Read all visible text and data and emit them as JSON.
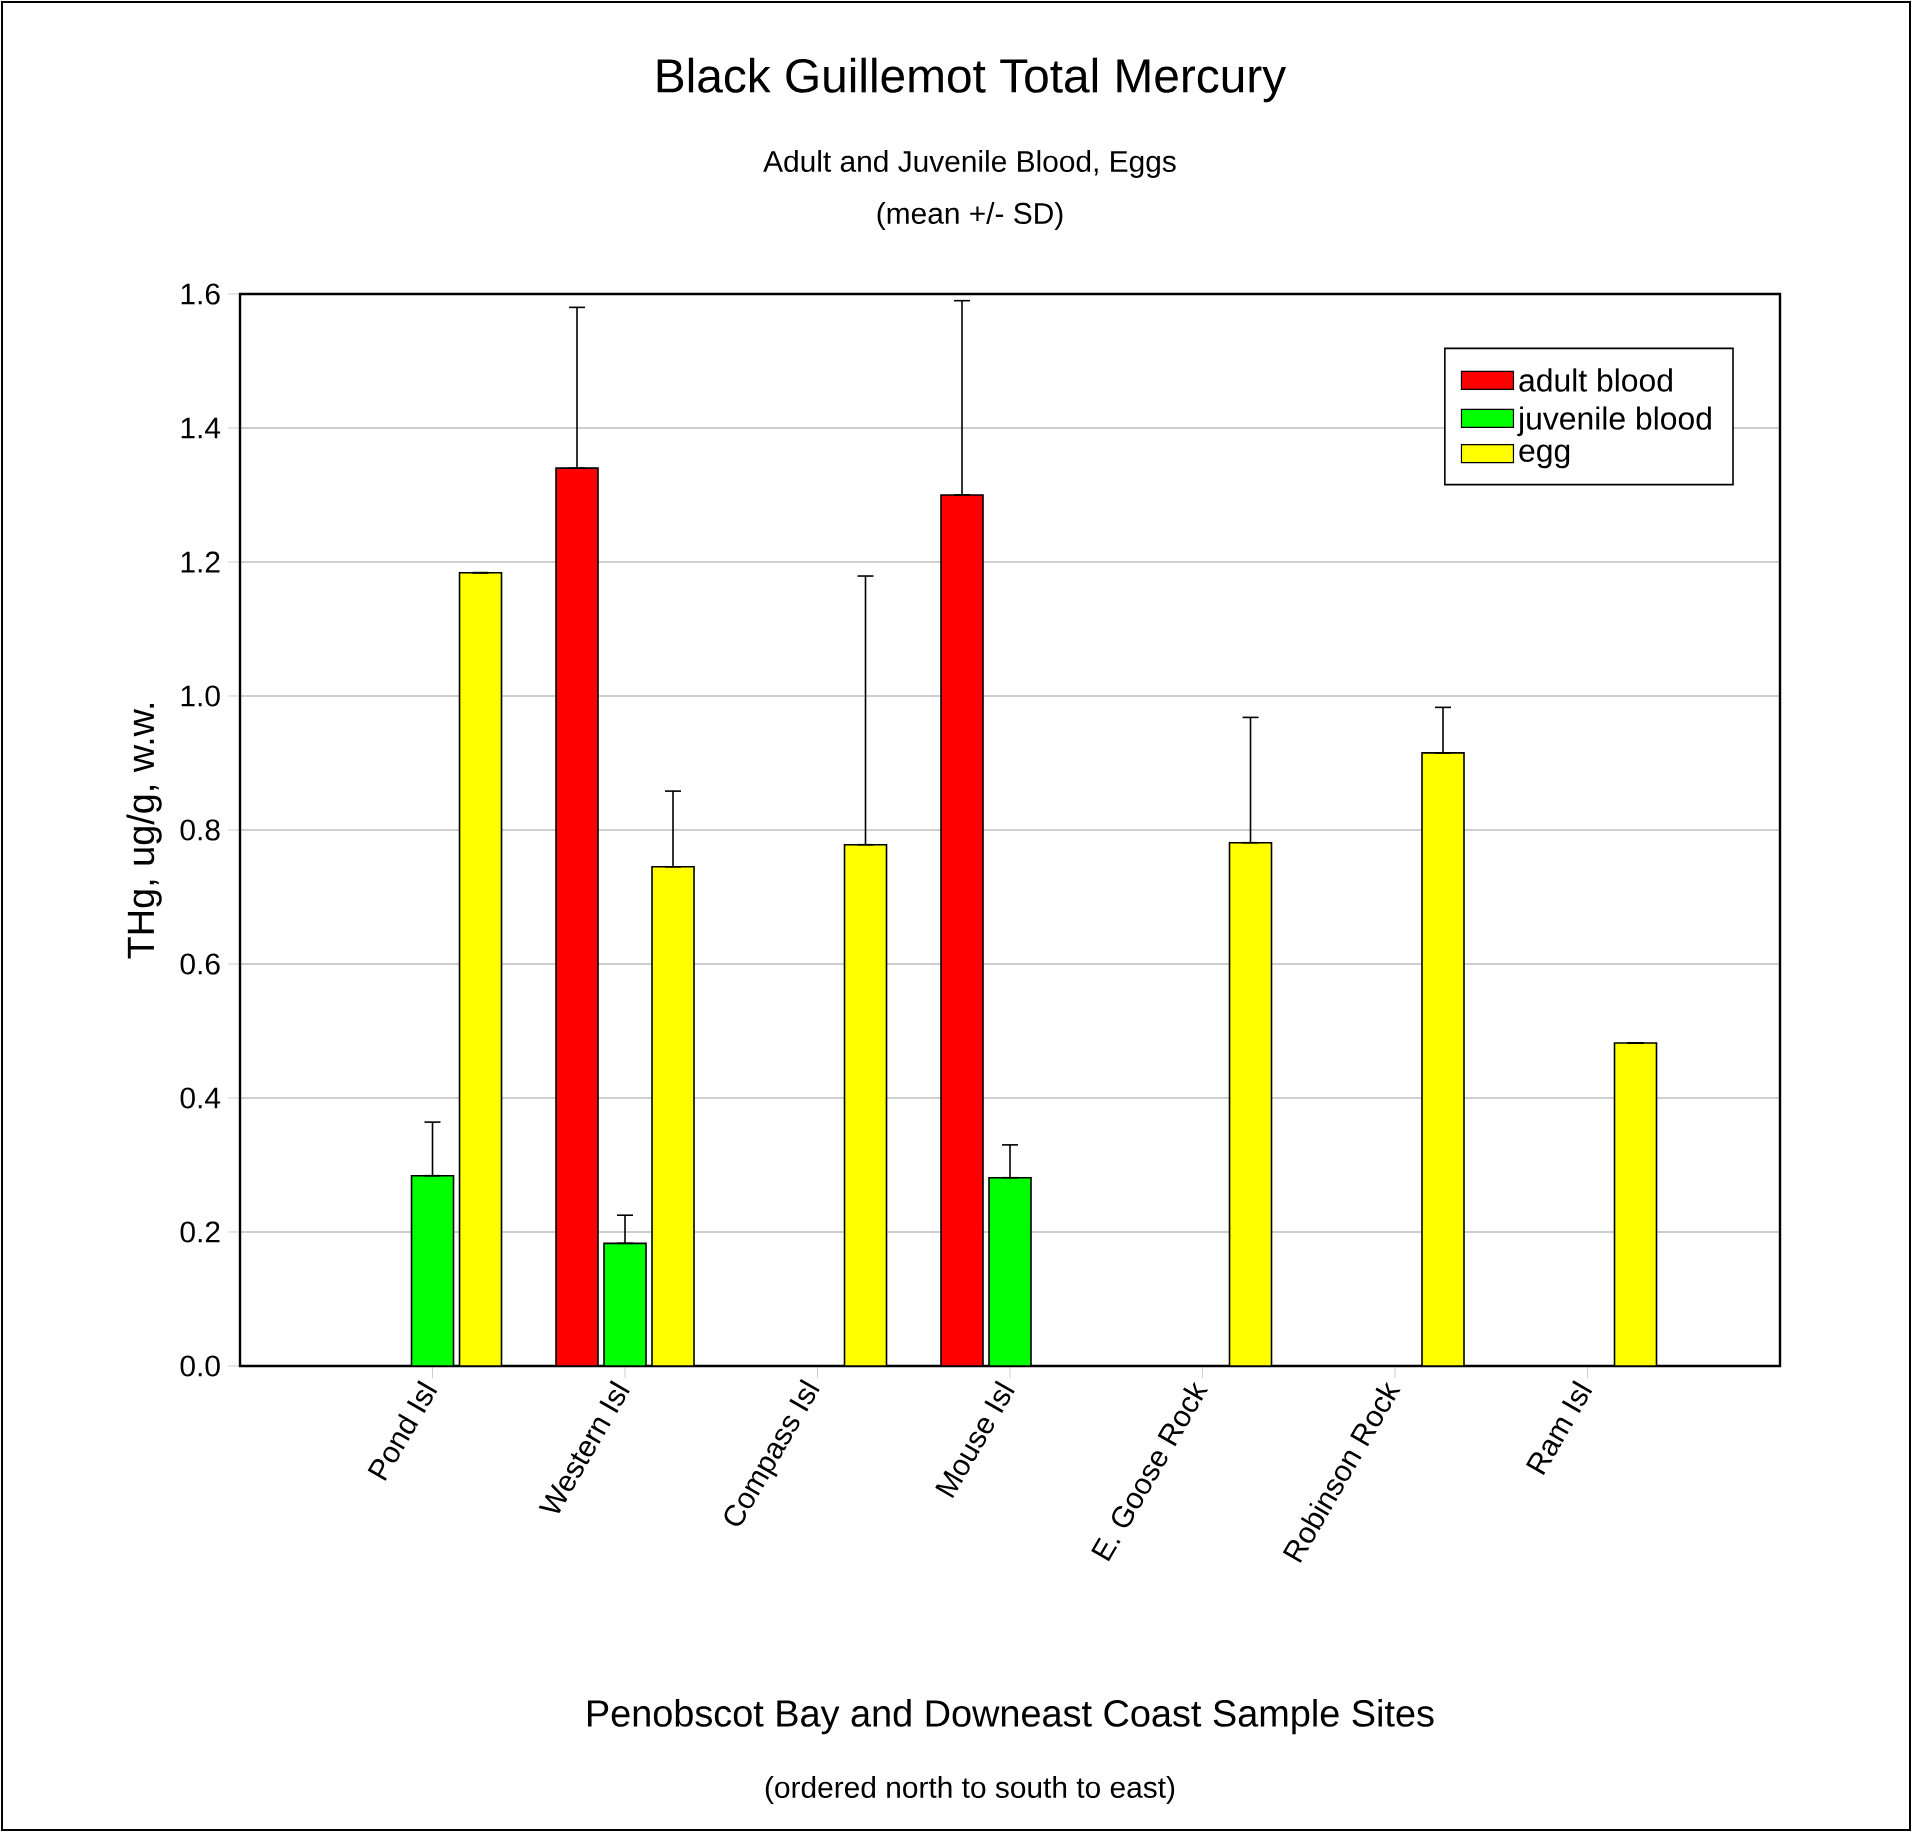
{
  "chart_data": {
    "type": "bar",
    "title": "Black Guillemot Total Mercury",
    "subtitle": "Adult and Juvenile Blood, Eggs",
    "annotations": [
      "(mean +/- SD)",
      "(ordered north to south to east)"
    ],
    "xlabel": "Penobscot Bay and Downeast Coast Sample Sites",
    "ylabel": "THg, ug/g, w.w.",
    "categories": [
      "Pond Isl",
      "Western Isl",
      "Compass Isl",
      "Mouse Isl",
      "E. Goose Rock",
      "Robinson Rock",
      "Ram Isl"
    ],
    "series": [
      {
        "name": "adult blood",
        "color": "#ff0000",
        "values": [
          null,
          1.34,
          null,
          1.3,
          null,
          null,
          null
        ],
        "errors": [
          null,
          [
            1.34,
            1.58
          ],
          null,
          [
            1.3,
            1.59
          ],
          null,
          null,
          null
        ]
      },
      {
        "name": "juvenile blood",
        "color": "#00ff00",
        "values": [
          0.284,
          0.183,
          null,
          0.281,
          null,
          null,
          null
        ],
        "errors": [
          [
            0.284,
            0.364
          ],
          [
            0.183,
            0.225
          ],
          null,
          [
            0.281,
            0.33
          ],
          null,
          null,
          null
        ]
      },
      {
        "name": "egg",
        "color": "#ffff00",
        "values": [
          1.184,
          0.745,
          0.778,
          null,
          0.781,
          0.915,
          0.482
        ],
        "errors": [
          null,
          [
            0.745,
            0.858
          ],
          [
            0.778,
            1.179
          ],
          null,
          [
            0.781,
            0.968
          ],
          [
            0.915,
            0.983
          ],
          null
        ]
      }
    ],
    "ylim": [
      0,
      1.6
    ],
    "yticks": [
      {
        "value": 0,
        "label": "0.0"
      },
      {
        "value": 0.2,
        "label": "0.2"
      },
      {
        "value": 0.4,
        "label": "0.4"
      },
      {
        "value": 0.6,
        "label": "0.6"
      },
      {
        "value": 0.8,
        "label": "0.8"
      },
      {
        "value": 1.0,
        "label": "1.0"
      },
      {
        "value": 1.2,
        "label": "1.2"
      },
      {
        "value": 1.4,
        "label": "1.4"
      },
      {
        "value": 1.6,
        "label": "1.6"
      }
    ],
    "grid": "y",
    "legend": "top right"
  }
}
